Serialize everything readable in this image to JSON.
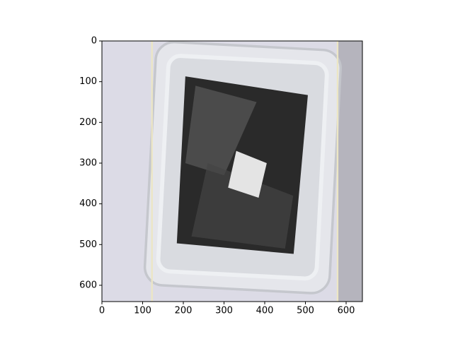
{
  "chart_data": {
    "type": "image",
    "xlim": [
      0,
      640
    ],
    "ylim": [
      640,
      0
    ],
    "xticks": [
      0,
      100,
      200,
      300,
      400,
      500,
      600
    ],
    "yticks": [
      0,
      100,
      200,
      300,
      400,
      500,
      600
    ]
  }
}
